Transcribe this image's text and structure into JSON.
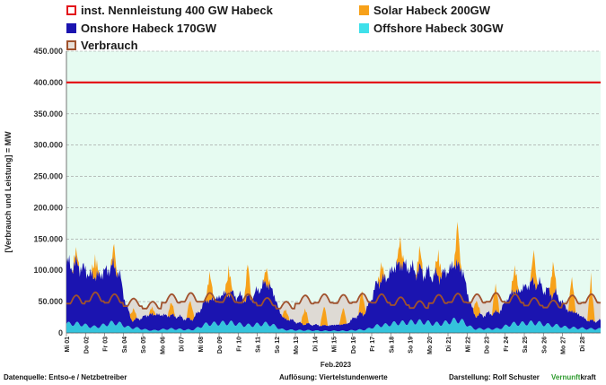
{
  "legend": {
    "nennleistung": "inst. Nennleistung 400 GW Habeck",
    "solar": "Solar Habeck 200GW",
    "onshore": "Onshore Habeck 170GW",
    "offshore": "Offshore Habeck 30GW",
    "verbrauch": "Verbrauch"
  },
  "colors": {
    "nennleistung": "#e3141b",
    "solar": "#f7a11a",
    "onshore": "#1b14b0",
    "offshore": "#34c3dc",
    "verbrauch": "#a0522d",
    "plot_bg": "#e6fbf1",
    "reserve_fill": "#dedad4"
  },
  "chart_data": {
    "type": "area",
    "ylabel": "[Verbrauch und Leistung] = MW",
    "xlabel": "Feb.2023",
    "ylim": [
      0,
      450000
    ],
    "ytick_labels": [
      "0",
      "50.000",
      "100.000",
      "150.000",
      "200.000",
      "250.000",
      "300.000",
      "350.000",
      "400.000",
      "450.000"
    ],
    "yticks": [
      0,
      50000,
      100000,
      150000,
      200000,
      250000,
      300000,
      350000,
      400000,
      450000
    ],
    "grid": true,
    "legend_position": "top",
    "categories": [
      "Mi 01",
      "Do 02",
      "Fr 03",
      "Sa 04",
      "So 05",
      "Mo 06",
      "Di 07",
      "Mi 08",
      "Do 09",
      "Fr 10",
      "Sa 11",
      "So 12",
      "Mo 13",
      "Di 14",
      "Mi 15",
      "Do 16",
      "Fr 17",
      "Sa 18",
      "So 19",
      "Mo 20",
      "Di 21",
      "Mi 22",
      "Do 23",
      "Fr 24",
      "Sa 25",
      "So 26",
      "Mo 27",
      "Di 28"
    ],
    "nennleistung": 400000,
    "series": [
      {
        "name": "Offshore Habeck 30GW",
        "values": [
          18000,
          12000,
          20000,
          10000,
          5000,
          8000,
          6000,
          18000,
          20000,
          15000,
          18000,
          6000,
          5000,
          4000,
          4000,
          6000,
          15000,
          20000,
          22000,
          18000,
          25000,
          8000,
          8000,
          18000,
          20000,
          15000,
          10000,
          8000
        ]
      },
      {
        "name": "Onshore Habeck 170GW",
        "values": [
          110000,
          95000,
          105000,
          15000,
          30000,
          25000,
          20000,
          45000,
          55000,
          50000,
          75000,
          20000,
          12000,
          10000,
          12000,
          30000,
          85000,
          110000,
          95000,
          90000,
          105000,
          25000,
          30000,
          60000,
          75000,
          60000,
          30000,
          15000
        ]
      },
      {
        "name": "Solar Habeck 200GW",
        "values": [
          15000,
          25000,
          20000,
          18000,
          10000,
          20000,
          30000,
          40000,
          35000,
          45000,
          20000,
          15000,
          25000,
          30000,
          25000,
          35000,
          20000,
          30000,
          25000,
          30000,
          50000,
          25000,
          40000,
          35000,
          40000,
          45000,
          50000,
          55000
        ]
      },
      {
        "name": "Verbrauch",
        "values": [
          60000,
          65000,
          62000,
          55000,
          50000,
          62000,
          64000,
          64000,
          63000,
          62000,
          56000,
          50000,
          60000,
          62000,
          61000,
          63000,
          62000,
          57000,
          51000,
          61000,
          63000,
          62000,
          64000,
          62000,
          56000,
          52000,
          60000,
          62000
        ]
      }
    ],
    "peak_totals": [
      135000,
      128000,
      145000,
      40000,
      42000,
      48000,
      52000,
      100000,
      110000,
      110000,
      105000,
      38000,
      40000,
      42000,
      40000,
      65000,
      115000,
      158000,
      140000,
      135000,
      180000,
      52000,
      80000,
      110000,
      135000,
      115000,
      90000,
      100000
    ]
  },
  "footer": {
    "source": "Datenquelle: Entso-e  / Netzbetreiber",
    "resolution": "Auflösung: Viertelstundenwerte",
    "author": "Darstellung:  Rolf Schuster",
    "brand_a": "Vernunft",
    "brand_b": "kraft"
  }
}
